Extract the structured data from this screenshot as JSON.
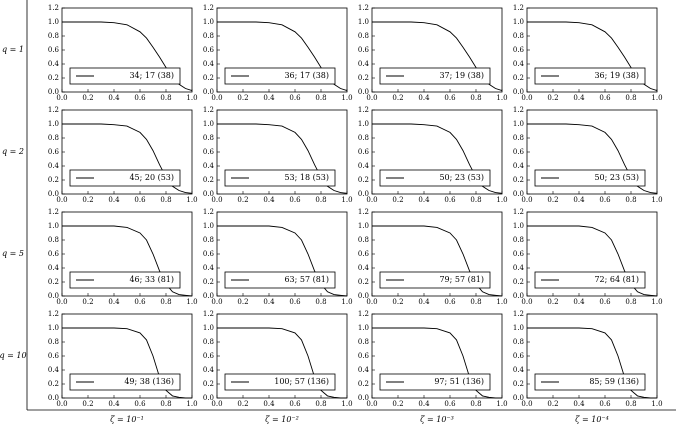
{
  "row_labels": [
    "q = 1",
    "q = 2",
    "q = 5",
    "q = 10"
  ],
  "col_labels": [
    "ζ = 10⁻¹",
    "ζ = 10⁻²",
    "ζ = 10⁻³",
    "ζ = 10⁻⁴"
  ],
  "chart_data": [
    {
      "type": "line",
      "x": [
        0,
        0.1,
        0.2,
        0.3,
        0.4,
        0.5,
        0.6,
        0.65,
        0.7,
        0.75,
        0.8,
        0.85,
        0.9,
        0.95,
        1
      ],
      "series": [
        {
          "name": "34; 17 (38)",
          "color": "#000000",
          "values": [
            1,
            1,
            1,
            1,
            0.99,
            0.96,
            0.86,
            0.77,
            0.64,
            0.5,
            0.35,
            0.21,
            0.11,
            0.05,
            0.02
          ]
        }
      ],
      "xlim": [
        0,
        1
      ],
      "ylim": [
        0,
        1.2
      ],
      "xticks": [
        {
          "value": 0,
          "label": "0.0"
        },
        0.2,
        0.4,
        0.6,
        0.8,
        {
          "value": 1,
          "label": "1.0"
        }
      ],
      "yticks": [
        {
          "value": 0,
          "label": "0.0"
        },
        0.2,
        0.4,
        0.6,
        0.8,
        {
          "value": 1,
          "label": "1.0"
        },
        1.2
      ]
    },
    {
      "type": "line",
      "x": [
        0,
        0.1,
        0.2,
        0.3,
        0.4,
        0.5,
        0.6,
        0.65,
        0.7,
        0.75,
        0.8,
        0.85,
        0.9,
        0.95,
        1
      ],
      "series": [
        {
          "name": "36; 17 (38)",
          "color": "#000000",
          "values": [
            1,
            1,
            1,
            1,
            0.99,
            0.96,
            0.86,
            0.77,
            0.64,
            0.5,
            0.35,
            0.21,
            0.11,
            0.05,
            0.02
          ]
        }
      ],
      "xlim": [
        0,
        1
      ],
      "ylim": [
        0,
        1.2
      ],
      "xticks": [
        {
          "value": 0,
          "label": "0.0"
        },
        0.2,
        0.4,
        0.6,
        0.8,
        {
          "value": 1,
          "label": "1.0"
        }
      ],
      "yticks": [
        {
          "value": 0,
          "label": "0.0"
        },
        0.2,
        0.4,
        0.6,
        0.8,
        {
          "value": 1,
          "label": "1.0"
        },
        1.2
      ]
    },
    {
      "type": "line",
      "x": [
        0,
        0.1,
        0.2,
        0.3,
        0.4,
        0.5,
        0.6,
        0.65,
        0.7,
        0.75,
        0.8,
        0.85,
        0.9,
        0.95,
        1
      ],
      "series": [
        {
          "name": "37; 19 (38)",
          "color": "#000000",
          "values": [
            1,
            1,
            1,
            1,
            0.99,
            0.96,
            0.86,
            0.77,
            0.64,
            0.5,
            0.35,
            0.21,
            0.11,
            0.05,
            0.02
          ]
        }
      ],
      "xlim": [
        0,
        1
      ],
      "ylim": [
        0,
        1.2
      ],
      "xticks": [
        {
          "value": 0,
          "label": "0.0"
        },
        0.2,
        0.4,
        0.6,
        0.8,
        {
          "value": 1,
          "label": "1.0"
        }
      ],
      "yticks": [
        {
          "value": 0,
          "label": "0.0"
        },
        0.2,
        0.4,
        0.6,
        0.8,
        {
          "value": 1,
          "label": "1.0"
        },
        1.2
      ]
    },
    {
      "type": "line",
      "x": [
        0,
        0.1,
        0.2,
        0.3,
        0.4,
        0.5,
        0.6,
        0.65,
        0.7,
        0.75,
        0.8,
        0.85,
        0.9,
        0.95,
        1
      ],
      "series": [
        {
          "name": "36; 19 (38)",
          "color": "#000000",
          "values": [
            1,
            1,
            1,
            1,
            0.99,
            0.96,
            0.86,
            0.77,
            0.64,
            0.5,
            0.35,
            0.21,
            0.11,
            0.05,
            0.02
          ]
        }
      ],
      "xlim": [
        0,
        1
      ],
      "ylim": [
        0,
        1.2
      ],
      "xticks": [
        {
          "value": 0,
          "label": "0.0"
        },
        0.2,
        0.4,
        0.6,
        0.8,
        {
          "value": 1,
          "label": "1.0"
        }
      ],
      "yticks": [
        {
          "value": 0,
          "label": "0.0"
        },
        0.2,
        0.4,
        0.6,
        0.8,
        {
          "value": 1,
          "label": "1.0"
        },
        1.2
      ]
    },
    {
      "type": "line",
      "x": [
        0,
        0.1,
        0.2,
        0.3,
        0.4,
        0.5,
        0.6,
        0.65,
        0.7,
        0.75,
        0.8,
        0.85,
        0.9,
        0.95,
        1
      ],
      "series": [
        {
          "name": "45; 20 (53)",
          "color": "#000000",
          "values": [
            1,
            1,
            1,
            1,
            0.99,
            0.97,
            0.88,
            0.78,
            0.62,
            0.42,
            0.24,
            0.11,
            0.05,
            0.02,
            0.01
          ]
        }
      ],
      "xlim": [
        0,
        1
      ],
      "ylim": [
        0,
        1.2
      ],
      "xticks": [
        {
          "value": 0,
          "label": "0.0"
        },
        0.2,
        0.4,
        0.6,
        0.8,
        {
          "value": 1,
          "label": "1.0"
        }
      ],
      "yticks": [
        {
          "value": 0,
          "label": "0.0"
        },
        0.2,
        0.4,
        0.6,
        0.8,
        {
          "value": 1,
          "label": "1.0"
        },
        1.2
      ]
    },
    {
      "type": "line",
      "x": [
        0,
        0.1,
        0.2,
        0.3,
        0.4,
        0.5,
        0.6,
        0.65,
        0.7,
        0.75,
        0.8,
        0.85,
        0.9,
        0.95,
        1
      ],
      "series": [
        {
          "name": "53; 18 (53)",
          "color": "#000000",
          "values": [
            1,
            1,
            1,
            1,
            0.99,
            0.97,
            0.88,
            0.78,
            0.62,
            0.42,
            0.24,
            0.11,
            0.05,
            0.02,
            0.01
          ]
        }
      ],
      "xlim": [
        0,
        1
      ],
      "ylim": [
        0,
        1.2
      ],
      "xticks": [
        {
          "value": 0,
          "label": "0.0"
        },
        0.2,
        0.4,
        0.6,
        0.8,
        {
          "value": 1,
          "label": "1.0"
        }
      ],
      "yticks": [
        {
          "value": 0,
          "label": "0.0"
        },
        0.2,
        0.4,
        0.6,
        0.8,
        {
          "value": 1,
          "label": "1.0"
        },
        1.2
      ]
    },
    {
      "type": "line",
      "x": [
        0,
        0.1,
        0.2,
        0.3,
        0.4,
        0.5,
        0.6,
        0.65,
        0.7,
        0.75,
        0.8,
        0.85,
        0.9,
        0.95,
        1
      ],
      "series": [
        {
          "name": "50; 23 (53)",
          "color": "#000000",
          "values": [
            1,
            1,
            1,
            1,
            0.99,
            0.97,
            0.88,
            0.78,
            0.62,
            0.42,
            0.24,
            0.11,
            0.05,
            0.02,
            0.01
          ]
        }
      ],
      "xlim": [
        0,
        1
      ],
      "ylim": [
        0,
        1.2
      ],
      "xticks": [
        {
          "value": 0,
          "label": "0.0"
        },
        0.2,
        0.4,
        0.6,
        0.8,
        {
          "value": 1,
          "label": "1.0"
        }
      ],
      "yticks": [
        {
          "value": 0,
          "label": "0.0"
        },
        0.2,
        0.4,
        0.6,
        0.8,
        {
          "value": 1,
          "label": "1.0"
        },
        1.2
      ]
    },
    {
      "type": "line",
      "x": [
        0,
        0.1,
        0.2,
        0.3,
        0.4,
        0.5,
        0.6,
        0.65,
        0.7,
        0.75,
        0.8,
        0.85,
        0.9,
        0.95,
        1
      ],
      "series": [
        {
          "name": "50; 23 (53)",
          "color": "#000000",
          "values": [
            1,
            1,
            1,
            1,
            0.99,
            0.97,
            0.88,
            0.78,
            0.62,
            0.42,
            0.24,
            0.11,
            0.05,
            0.02,
            0.01
          ]
        }
      ],
      "xlim": [
        0,
        1
      ],
      "ylim": [
        0,
        1.2
      ],
      "xticks": [
        {
          "value": 0,
          "label": "0.0"
        },
        0.2,
        0.4,
        0.6,
        0.8,
        {
          "value": 1,
          "label": "1.0"
        }
      ],
      "yticks": [
        {
          "value": 0,
          "label": "0.0"
        },
        0.2,
        0.4,
        0.6,
        0.8,
        {
          "value": 1,
          "label": "1.0"
        },
        1.2
      ]
    },
    {
      "type": "line",
      "x": [
        0,
        0.1,
        0.2,
        0.3,
        0.4,
        0.5,
        0.6,
        0.65,
        0.7,
        0.75,
        0.8,
        0.85,
        0.9,
        0.95,
        1
      ],
      "series": [
        {
          "name": "46; 33 (81)",
          "color": "#000000",
          "values": [
            1,
            1,
            1,
            1,
            1,
            0.98,
            0.9,
            0.8,
            0.6,
            0.36,
            0.17,
            0.06,
            0.02,
            0.01,
            0
          ]
        }
      ],
      "xlim": [
        0,
        1
      ],
      "ylim": [
        0,
        1.2
      ],
      "xticks": [
        {
          "value": 0,
          "label": "0.0"
        },
        0.2,
        0.4,
        0.6,
        0.8,
        {
          "value": 1,
          "label": "1.0"
        }
      ],
      "yticks": [
        {
          "value": 0,
          "label": "0.0"
        },
        0.2,
        0.4,
        0.6,
        0.8,
        {
          "value": 1,
          "label": "1.0"
        },
        1.2
      ]
    },
    {
      "type": "line",
      "x": [
        0,
        0.1,
        0.2,
        0.3,
        0.4,
        0.5,
        0.6,
        0.65,
        0.7,
        0.75,
        0.8,
        0.85,
        0.9,
        0.95,
        1
      ],
      "series": [
        {
          "name": "63; 57 (81)",
          "color": "#000000",
          "values": [
            1,
            1,
            1,
            1,
            1,
            0.98,
            0.9,
            0.8,
            0.6,
            0.36,
            0.17,
            0.06,
            0.02,
            0.01,
            0
          ]
        }
      ],
      "xlim": [
        0,
        1
      ],
      "ylim": [
        0,
        1.2
      ],
      "xticks": [
        {
          "value": 0,
          "label": "0.0"
        },
        0.2,
        0.4,
        0.6,
        0.8,
        {
          "value": 1,
          "label": "1.0"
        }
      ],
      "yticks": [
        {
          "value": 0,
          "label": "0.0"
        },
        0.2,
        0.4,
        0.6,
        0.8,
        {
          "value": 1,
          "label": "1.0"
        },
        1.2
      ]
    },
    {
      "type": "line",
      "x": [
        0,
        0.1,
        0.2,
        0.3,
        0.4,
        0.5,
        0.6,
        0.65,
        0.7,
        0.75,
        0.8,
        0.85,
        0.9,
        0.95,
        1
      ],
      "series": [
        {
          "name": "79; 57 (81)",
          "color": "#000000",
          "values": [
            1,
            1,
            1,
            1,
            1,
            0.98,
            0.9,
            0.8,
            0.6,
            0.36,
            0.17,
            0.06,
            0.02,
            0.01,
            0
          ]
        }
      ],
      "xlim": [
        0,
        1
      ],
      "ylim": [
        0,
        1.2
      ],
      "xticks": [
        {
          "value": 0,
          "label": "0.0"
        },
        0.2,
        0.4,
        0.6,
        0.8,
        {
          "value": 1,
          "label": "1.0"
        }
      ],
      "yticks": [
        {
          "value": 0,
          "label": "0.0"
        },
        0.2,
        0.4,
        0.6,
        0.8,
        {
          "value": 1,
          "label": "1.0"
        },
        1.2
      ]
    },
    {
      "type": "line",
      "x": [
        0,
        0.1,
        0.2,
        0.3,
        0.4,
        0.5,
        0.6,
        0.65,
        0.7,
        0.75,
        0.8,
        0.85,
        0.9,
        0.95,
        1
      ],
      "series": [
        {
          "name": "72; 64 (81)",
          "color": "#000000",
          "values": [
            1,
            1,
            1,
            1,
            1,
            0.98,
            0.9,
            0.8,
            0.6,
            0.36,
            0.17,
            0.06,
            0.02,
            0.01,
            0
          ]
        }
      ],
      "xlim": [
        0,
        1
      ],
      "ylim": [
        0,
        1.2
      ],
      "xticks": [
        {
          "value": 0,
          "label": "0.0"
        },
        0.2,
        0.4,
        0.6,
        0.8,
        {
          "value": 1,
          "label": "1.0"
        }
      ],
      "yticks": [
        {
          "value": 0,
          "label": "0.0"
        },
        0.2,
        0.4,
        0.6,
        0.8,
        {
          "value": 1,
          "label": "1.0"
        },
        1.2
      ]
    },
    {
      "type": "line",
      "x": [
        0,
        0.1,
        0.2,
        0.3,
        0.4,
        0.5,
        0.6,
        0.65,
        0.7,
        0.75,
        0.8,
        0.85,
        0.9,
        0.95,
        1
      ],
      "series": [
        {
          "name": "49; 38 (136)",
          "color": "#000000",
          "values": [
            1,
            1,
            1,
            1,
            1,
            0.99,
            0.93,
            0.83,
            0.6,
            0.3,
            0.11,
            0.03,
            0.01,
            0,
            0
          ]
        }
      ],
      "xlim": [
        0,
        1
      ],
      "ylim": [
        0,
        1.2
      ],
      "xticks": [
        {
          "value": 0,
          "label": "0.0"
        },
        0.2,
        0.4,
        0.6,
        0.8,
        {
          "value": 1,
          "label": "1.0"
        }
      ],
      "yticks": [
        {
          "value": 0,
          "label": "0.0"
        },
        0.2,
        0.4,
        0.6,
        0.8,
        {
          "value": 1,
          "label": "1.0"
        },
        1.2
      ]
    },
    {
      "type": "line",
      "x": [
        0,
        0.1,
        0.2,
        0.3,
        0.4,
        0.5,
        0.6,
        0.65,
        0.7,
        0.75,
        0.8,
        0.85,
        0.9,
        0.95,
        1
      ],
      "series": [
        {
          "name": "100; 57 (136)",
          "color": "#000000",
          "values": [
            1,
            1,
            1,
            1,
            1,
            0.99,
            0.93,
            0.83,
            0.6,
            0.3,
            0.11,
            0.03,
            0.01,
            0,
            0
          ]
        }
      ],
      "xlim": [
        0,
        1
      ],
      "ylim": [
        0,
        1.2
      ],
      "xticks": [
        {
          "value": 0,
          "label": "0.0"
        },
        0.2,
        0.4,
        0.6,
        0.8,
        {
          "value": 1,
          "label": "1.0"
        }
      ],
      "yticks": [
        {
          "value": 0,
          "label": "0.0"
        },
        0.2,
        0.4,
        0.6,
        0.8,
        {
          "value": 1,
          "label": "1.0"
        },
        1.2
      ]
    },
    {
      "type": "line",
      "x": [
        0,
        0.1,
        0.2,
        0.3,
        0.4,
        0.5,
        0.6,
        0.65,
        0.7,
        0.75,
        0.8,
        0.85,
        0.9,
        0.95,
        1
      ],
      "series": [
        {
          "name": "97; 51 (136)",
          "color": "#000000",
          "values": [
            1,
            1,
            1,
            1,
            1,
            0.99,
            0.93,
            0.83,
            0.6,
            0.3,
            0.11,
            0.03,
            0.01,
            0,
            0
          ]
        }
      ],
      "xlim": [
        0,
        1
      ],
      "ylim": [
        0,
        1.2
      ],
      "xticks": [
        {
          "value": 0,
          "label": "0.0"
        },
        0.2,
        0.4,
        0.6,
        0.8,
        {
          "value": 1,
          "label": "1.0"
        }
      ],
      "yticks": [
        {
          "value": 0,
          "label": "0.0"
        },
        0.2,
        0.4,
        0.6,
        0.8,
        {
          "value": 1,
          "label": "1.0"
        },
        1.2
      ]
    },
    {
      "type": "line",
      "x": [
        0,
        0.1,
        0.2,
        0.3,
        0.4,
        0.5,
        0.6,
        0.65,
        0.7,
        0.75,
        0.8,
        0.85,
        0.9,
        0.95,
        1
      ],
      "series": [
        {
          "name": "85; 59 (136)",
          "color": "#000000",
          "values": [
            1,
            1,
            1,
            1,
            1,
            0.99,
            0.93,
            0.83,
            0.6,
            0.3,
            0.11,
            0.03,
            0.01,
            0,
            0
          ]
        }
      ],
      "xlim": [
        0,
        1
      ],
      "ylim": [
        0,
        1.2
      ],
      "xticks": [
        {
          "value": 0,
          "label": "0.0"
        },
        0.2,
        0.4,
        0.6,
        0.8,
        {
          "value": 1,
          "label": "1.0"
        }
      ],
      "yticks": [
        {
          "value": 0,
          "label": "0.0"
        },
        0.2,
        0.4,
        0.6,
        0.8,
        {
          "value": 1,
          "label": "1.0"
        },
        1.2
      ]
    }
  ]
}
